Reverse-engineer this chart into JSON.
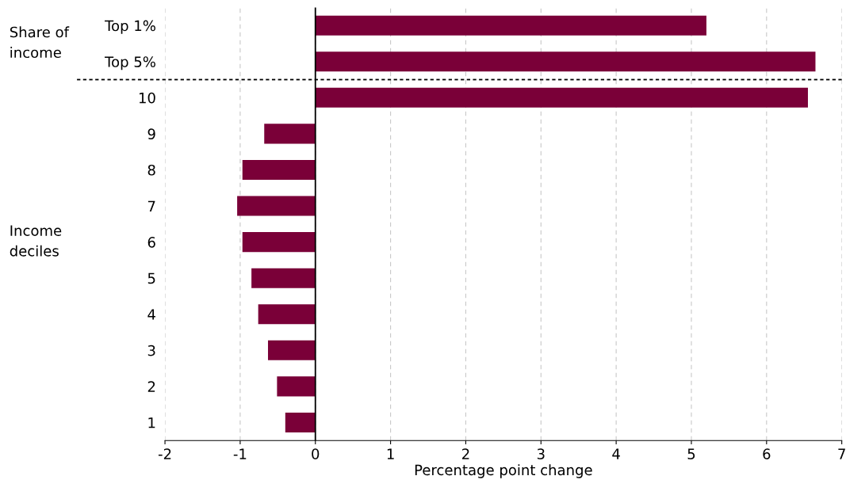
{
  "chart_data": {
    "type": "bar",
    "orientation": "horizontal",
    "categories": [
      "Top 1%",
      "Top 5%",
      "10",
      "9",
      "8",
      "7",
      "6",
      "5",
      "4",
      "3",
      "2",
      "1"
    ],
    "values": [
      5.2,
      6.65,
      6.55,
      -0.68,
      -0.97,
      -1.04,
      -0.97,
      -0.85,
      -0.76,
      -0.63,
      -0.51,
      -0.4
    ],
    "color": "#7a0038",
    "xlim": [
      -2,
      7
    ],
    "xticks": [
      -2,
      -1,
      0,
      1,
      2,
      3,
      4,
      5,
      6,
      7
    ],
    "xlabel": "Percentage point change",
    "grid": "x",
    "annotations": [
      "Share of\nincome",
      "Income\ndeciles"
    ],
    "ref_lines": [
      {
        "axis": "x",
        "value": 0,
        "line_style": "solid",
        "color": "#000000"
      }
    ]
  }
}
